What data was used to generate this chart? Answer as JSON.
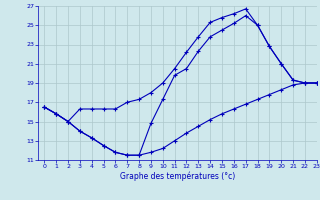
{
  "title": "Graphe des températures (°c)",
  "xlim": [
    -0.5,
    23
  ],
  "ylim": [
    11,
    27
  ],
  "xticks": [
    0,
    1,
    2,
    3,
    4,
    5,
    6,
    7,
    8,
    9,
    10,
    11,
    12,
    13,
    14,
    15,
    16,
    17,
    18,
    19,
    20,
    21,
    22,
    23
  ],
  "yticks": [
    11,
    13,
    15,
    17,
    19,
    21,
    23,
    25,
    27
  ],
  "background_color": "#cfe8ec",
  "grid_color": "#adc8cc",
  "line_color": "#0000bb",
  "curve1_x": [
    0,
    1,
    2,
    3,
    4,
    5,
    6,
    7,
    8,
    9,
    10,
    11,
    12,
    13,
    14,
    15,
    16,
    17,
    18,
    19,
    20,
    21,
    22,
    23
  ],
  "curve1_y": [
    16.5,
    15.8,
    15.0,
    16.3,
    16.3,
    16.3,
    16.3,
    17.0,
    17.3,
    18.0,
    19.0,
    20.5,
    22.2,
    23.8,
    25.3,
    25.8,
    26.2,
    26.7,
    25.0,
    22.8,
    21.0,
    19.3,
    19.0,
    19.0
  ],
  "curve2_x": [
    0,
    1,
    2,
    3,
    4,
    5,
    6,
    7,
    8,
    9,
    10,
    11,
    12,
    13,
    14,
    15,
    16,
    17,
    18,
    19,
    20,
    21,
    22,
    23
  ],
  "curve2_y": [
    16.5,
    15.8,
    15.0,
    14.0,
    13.3,
    12.5,
    11.8,
    11.5,
    11.5,
    14.8,
    17.3,
    19.8,
    20.5,
    22.3,
    23.8,
    24.5,
    25.2,
    26.0,
    25.0,
    22.8,
    21.0,
    19.3,
    19.0,
    19.0
  ],
  "curve3_x": [
    0,
    1,
    2,
    3,
    4,
    5,
    6,
    7,
    8,
    9,
    10,
    11,
    12,
    13,
    14,
    15,
    16,
    17,
    18,
    19,
    20,
    21,
    22,
    23
  ],
  "curve3_y": [
    16.5,
    15.8,
    15.0,
    14.0,
    13.3,
    12.5,
    11.8,
    11.5,
    11.5,
    11.8,
    12.2,
    13.0,
    13.8,
    14.5,
    15.2,
    15.8,
    16.3,
    16.8,
    17.3,
    17.8,
    18.3,
    18.8,
    19.0,
    19.0
  ]
}
